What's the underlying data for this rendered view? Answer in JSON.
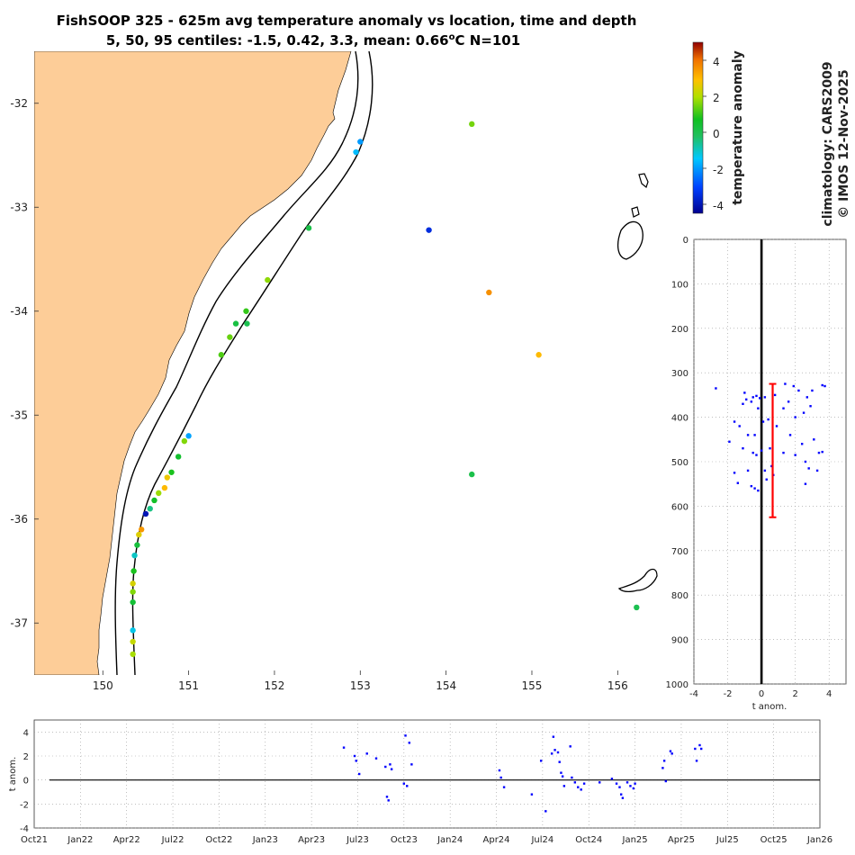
{
  "title": {
    "line1": "FishSOOP 325 - 625m avg temperature anomaly vs location, time and depth",
    "line2_prefix": "5, 50, 95 centiles: -1.5, 0.42, 3.3, mean: 0.66",
    "line2_degree": "o",
    "line2_suffix": "C N=101"
  },
  "side_text": {
    "climatology": "climatology: CARS2009",
    "copyright": "© IMOS 12-Nov-2025"
  },
  "colors": {
    "land": "#FDCD98",
    "profile_points": "#0000FF",
    "mean_bar": "#FF0000",
    "zero_line": "#000000"
  },
  "colorbar": {
    "label": "temperature anomaly",
    "ticks": [
      "4",
      "2",
      "0",
      "-2",
      "-4"
    ],
    "range": [
      -4.5,
      5
    ]
  },
  "chart_data": [
    {
      "type": "scatter",
      "name": "map",
      "xlim": [
        149.2,
        156.5
      ],
      "ylim": [
        -37.5,
        -31.5
      ],
      "x_ticks": [
        "150",
        "151",
        "152",
        "153",
        "154",
        "155",
        "156"
      ],
      "y_ticks": [
        "-32",
        "-33",
        "-34",
        "-35",
        "-36",
        "-37"
      ],
      "points": [
        {
          "lon": 154.3,
          "lat": -32.2,
          "anom": 1.5
        },
        {
          "lon": 153.0,
          "lat": -32.37,
          "anom": -2.0
        },
        {
          "lon": 152.95,
          "lat": -32.47,
          "anom": -1.6
        },
        {
          "lon": 153.8,
          "lat": -33.22,
          "anom": -3.5
        },
        {
          "lon": 152.4,
          "lat": -33.2,
          "anom": 0.1
        },
        {
          "lon": 151.92,
          "lat": -33.7,
          "anom": 1.7
        },
        {
          "lon": 154.5,
          "lat": -33.82,
          "anom": 3.6
        },
        {
          "lon": 151.67,
          "lat": -34.0,
          "anom": 1.0
        },
        {
          "lon": 151.55,
          "lat": -34.12,
          "anom": 0.2
        },
        {
          "lon": 151.68,
          "lat": -34.12,
          "anom": 0.0
        },
        {
          "lon": 151.48,
          "lat": -34.25,
          "anom": 1.4
        },
        {
          "lon": 151.38,
          "lat": -34.42,
          "anom": 1.2
        },
        {
          "lon": 155.08,
          "lat": -34.42,
          "anom": 3.0
        },
        {
          "lon": 151.0,
          "lat": -35.2,
          "anom": -1.9
        },
        {
          "lon": 150.95,
          "lat": -35.25,
          "anom": 1.6
        },
        {
          "lon": 150.88,
          "lat": -35.4,
          "anom": 0.5
        },
        {
          "lon": 150.8,
          "lat": -35.55,
          "anom": 0.8
        },
        {
          "lon": 150.75,
          "lat": -35.6,
          "anom": 2.7
        },
        {
          "lon": 150.72,
          "lat": -35.7,
          "anom": 3.0
        },
        {
          "lon": 150.65,
          "lat": -35.75,
          "anom": 1.8
        },
        {
          "lon": 150.6,
          "lat": -35.82,
          "anom": 0.6
        },
        {
          "lon": 150.55,
          "lat": -35.9,
          "anom": -0.5
        },
        {
          "lon": 150.5,
          "lat": -35.95,
          "anom": -4.0
        },
        {
          "lon": 154.3,
          "lat": -35.57,
          "anom": 0.1
        },
        {
          "lon": 150.45,
          "lat": -36.1,
          "anom": 3.5
        },
        {
          "lon": 150.42,
          "lat": -36.15,
          "anom": 2.5
        },
        {
          "lon": 150.4,
          "lat": -36.25,
          "anom": 0.3
        },
        {
          "lon": 150.37,
          "lat": -36.35,
          "anom": -1.0
        },
        {
          "lon": 150.36,
          "lat": -36.5,
          "anom": 0.8
        },
        {
          "lon": 150.35,
          "lat": -36.62,
          "anom": 2.4
        },
        {
          "lon": 150.35,
          "lat": -36.7,
          "anom": 1.6
        },
        {
          "lon": 150.35,
          "lat": -36.8,
          "anom": 0.4
        },
        {
          "lon": 150.35,
          "lat": -37.07,
          "anom": -1.3
        },
        {
          "lon": 150.35,
          "lat": -37.18,
          "anom": 2.2
        },
        {
          "lon": 150.35,
          "lat": -37.3,
          "anom": 1.9
        },
        {
          "lon": 156.22,
          "lat": -36.85,
          "anom": 0.0
        }
      ]
    },
    {
      "type": "scatter",
      "name": "depth_profile",
      "xlabel": "t anom.",
      "xlim": [
        -4,
        5
      ],
      "ylim": [
        0,
        1000
      ],
      "x_ticks": [
        "-4",
        "-2",
        "0",
        "2",
        "4"
      ],
      "y_ticks": [
        "0",
        "100",
        "200",
        "300",
        "400",
        "500",
        "600",
        "700",
        "800",
        "900",
        "1000"
      ],
      "mean_anomaly": 0.66,
      "mean_depth_range": [
        325,
        625
      ],
      "points": [
        {
          "x": -2.7,
          "depth": 335
        },
        {
          "x": -1.0,
          "depth": 345
        },
        {
          "x": -0.9,
          "depth": 360
        },
        {
          "x": -0.5,
          "depth": 355
        },
        {
          "x": -0.3,
          "depth": 352
        },
        {
          "x": -0.1,
          "depth": 357
        },
        {
          "x": 0.2,
          "depth": 355
        },
        {
          "x": 0.8,
          "depth": 350
        },
        {
          "x": 1.4,
          "depth": 325
        },
        {
          "x": 1.9,
          "depth": 330
        },
        {
          "x": 2.2,
          "depth": 340
        },
        {
          "x": 2.7,
          "depth": 355
        },
        {
          "x": 3.0,
          "depth": 340
        },
        {
          "x": 3.6,
          "depth": 328
        },
        {
          "x": 3.75,
          "depth": 330
        },
        {
          "x": -1.1,
          "depth": 370
        },
        {
          "x": -0.6,
          "depth": 365
        },
        {
          "x": -0.2,
          "depth": 380
        },
        {
          "x": 0.1,
          "depth": 410
        },
        {
          "x": 0.4,
          "depth": 405
        },
        {
          "x": 1.3,
          "depth": 380
        },
        {
          "x": 1.6,
          "depth": 365
        },
        {
          "x": 2.0,
          "depth": 400
        },
        {
          "x": 2.5,
          "depth": 390
        },
        {
          "x": 2.9,
          "depth": 375
        },
        {
          "x": -1.6,
          "depth": 410
        },
        {
          "x": -1.3,
          "depth": 420
        },
        {
          "x": -0.8,
          "depth": 440
        },
        {
          "x": -0.4,
          "depth": 440
        },
        {
          "x": 0.9,
          "depth": 420
        },
        {
          "x": 1.7,
          "depth": 440
        },
        {
          "x": 2.4,
          "depth": 460
        },
        {
          "x": 3.1,
          "depth": 450
        },
        {
          "x": -1.9,
          "depth": 455
        },
        {
          "x": -1.1,
          "depth": 470
        },
        {
          "x": -0.5,
          "depth": 480
        },
        {
          "x": -0.3,
          "depth": 485
        },
        {
          "x": 0.0,
          "depth": 475
        },
        {
          "x": 0.5,
          "depth": 470
        },
        {
          "x": 1.3,
          "depth": 480
        },
        {
          "x": 2.0,
          "depth": 485
        },
        {
          "x": 2.6,
          "depth": 500
        },
        {
          "x": 3.4,
          "depth": 480
        },
        {
          "x": 3.6,
          "depth": 478
        },
        {
          "x": -0.8,
          "depth": 520
        },
        {
          "x": 0.2,
          "depth": 520
        },
        {
          "x": 0.6,
          "depth": 510
        },
        {
          "x": 2.8,
          "depth": 515
        },
        {
          "x": 3.3,
          "depth": 520
        },
        {
          "x": -1.6,
          "depth": 525
        },
        {
          "x": -1.4,
          "depth": 548
        },
        {
          "x": -0.6,
          "depth": 555
        },
        {
          "x": -0.4,
          "depth": 560
        },
        {
          "x": -0.2,
          "depth": 565
        },
        {
          "x": 0.3,
          "depth": 540
        },
        {
          "x": 0.7,
          "depth": 530
        },
        {
          "x": 2.6,
          "depth": 550
        }
      ]
    },
    {
      "type": "scatter",
      "name": "time_series",
      "ylabel": "t anom.",
      "ylim": [
        -4,
        5
      ],
      "y_ticks": [
        "4",
        "2",
        "0",
        "-2",
        "-4"
      ],
      "x_ticks": [
        "Oct21",
        "Jan22",
        "Apr22",
        "Jul22",
        "Oct22",
        "Jan23",
        "Apr23",
        "Jul23",
        "Oct23",
        "Jan24",
        "Apr24",
        "Jul24",
        "Oct24",
        "Jan25",
        "Apr25",
        "Jul25",
        "Oct25",
        "Jan26"
      ],
      "xlim_months": [
        0,
        51
      ],
      "points": [
        {
          "t": 20.1,
          "y": 2.7
        },
        {
          "t": 20.8,
          "y": 2.0
        },
        {
          "t": 20.9,
          "y": 1.6
        },
        {
          "t": 21.1,
          "y": 0.5
        },
        {
          "t": 21.6,
          "y": 2.2
        },
        {
          "t": 22.2,
          "y": 1.8
        },
        {
          "t": 22.8,
          "y": 1.1
        },
        {
          "t": 22.9,
          "y": -1.4
        },
        {
          "t": 23.0,
          "y": -1.7
        },
        {
          "t": 23.1,
          "y": 1.3
        },
        {
          "t": 23.2,
          "y": 0.9
        },
        {
          "t": 24.0,
          "y": -0.3
        },
        {
          "t": 24.1,
          "y": 3.7
        },
        {
          "t": 24.2,
          "y": -0.5
        },
        {
          "t": 24.35,
          "y": 3.1
        },
        {
          "t": 24.5,
          "y": 1.3
        },
        {
          "t": 30.2,
          "y": 0.8
        },
        {
          "t": 30.3,
          "y": 0.2
        },
        {
          "t": 30.5,
          "y": -0.6
        },
        {
          "t": 32.3,
          "y": -1.2
        },
        {
          "t": 32.9,
          "y": 1.6
        },
        {
          "t": 33.2,
          "y": -2.6
        },
        {
          "t": 33.6,
          "y": 2.2
        },
        {
          "t": 33.7,
          "y": 3.6
        },
        {
          "t": 33.8,
          "y": 2.5
        },
        {
          "t": 34.0,
          "y": 2.3
        },
        {
          "t": 34.1,
          "y": 1.5
        },
        {
          "t": 34.2,
          "y": 0.6
        },
        {
          "t": 34.3,
          "y": 0.3
        },
        {
          "t": 34.4,
          "y": -0.5
        },
        {
          "t": 34.8,
          "y": 2.8
        },
        {
          "t": 34.9,
          "y": 0.2
        },
        {
          "t": 35.1,
          "y": -0.2
        },
        {
          "t": 35.3,
          "y": -0.6
        },
        {
          "t": 35.5,
          "y": -0.8
        },
        {
          "t": 35.7,
          "y": -0.3
        },
        {
          "t": 36.7,
          "y": -0.2
        },
        {
          "t": 37.5,
          "y": 0.1
        },
        {
          "t": 37.8,
          "y": -0.3
        },
        {
          "t": 38.0,
          "y": -0.6
        },
        {
          "t": 38.1,
          "y": -1.2
        },
        {
          "t": 38.2,
          "y": -1.5
        },
        {
          "t": 38.5,
          "y": -0.2
        },
        {
          "t": 38.7,
          "y": -0.5
        },
        {
          "t": 38.9,
          "y": -0.7
        },
        {
          "t": 39.0,
          "y": -0.3
        },
        {
          "t": 40.8,
          "y": 1.0
        },
        {
          "t": 40.9,
          "y": 1.6
        },
        {
          "t": 41.0,
          "y": -0.1
        },
        {
          "t": 41.3,
          "y": 2.4
        },
        {
          "t": 41.4,
          "y": 2.2
        },
        {
          "t": 42.9,
          "y": 2.6
        },
        {
          "t": 43.0,
          "y": 1.6
        },
        {
          "t": 43.2,
          "y": 2.9
        },
        {
          "t": 43.3,
          "y": 2.6
        }
      ]
    }
  ]
}
